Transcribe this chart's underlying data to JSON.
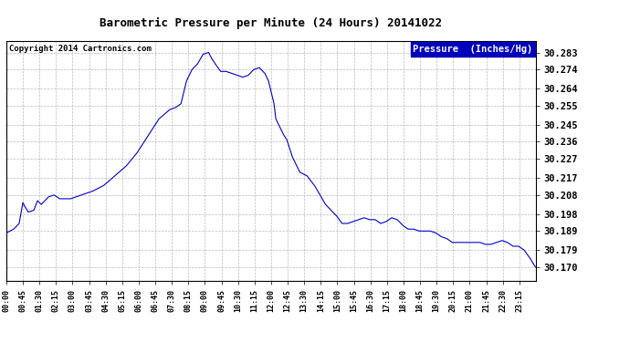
{
  "title": "Barometric Pressure per Minute (24 Hours) 20141022",
  "copyright": "Copyright 2014 Cartronics.com",
  "legend_label": "Pressure  (Inches/Hg)",
  "line_color": "#0000cc",
  "background_color": "#ffffff",
  "grid_color": "#aaaaaa",
  "copyright_color": "#000000",
  "yticks": [
    30.17,
    30.179,
    30.189,
    30.198,
    30.208,
    30.217,
    30.227,
    30.236,
    30.245,
    30.255,
    30.264,
    30.274,
    30.283
  ],
  "ylim": [
    30.163,
    30.289
  ],
  "xtick_labels": [
    "00:00",
    "00:45",
    "01:30",
    "02:15",
    "03:00",
    "03:45",
    "04:30",
    "05:15",
    "06:00",
    "06:45",
    "07:30",
    "08:15",
    "09:00",
    "09:45",
    "10:30",
    "11:15",
    "12:00",
    "12:45",
    "13:30",
    "14:15",
    "15:00",
    "15:45",
    "16:30",
    "17:15",
    "18:00",
    "18:45",
    "19:30",
    "20:15",
    "21:00",
    "21:45",
    "22:30",
    "23:15"
  ],
  "key_shape": [
    {
      "t": 0,
      "v": 30.188
    },
    {
      "t": 20,
      "v": 30.19
    },
    {
      "t": 35,
      "v": 30.193
    },
    {
      "t": 45,
      "v": 30.204
    },
    {
      "t": 50,
      "v": 30.202
    },
    {
      "t": 60,
      "v": 30.199
    },
    {
      "t": 75,
      "v": 30.2
    },
    {
      "t": 85,
      "v": 30.205
    },
    {
      "t": 95,
      "v": 30.203
    },
    {
      "t": 115,
      "v": 30.207
    },
    {
      "t": 130,
      "v": 30.208
    },
    {
      "t": 145,
      "v": 30.206
    },
    {
      "t": 175,
      "v": 30.206
    },
    {
      "t": 205,
      "v": 30.208
    },
    {
      "t": 235,
      "v": 30.21
    },
    {
      "t": 265,
      "v": 30.213
    },
    {
      "t": 295,
      "v": 30.218
    },
    {
      "t": 325,
      "v": 30.223
    },
    {
      "t": 355,
      "v": 30.23
    },
    {
      "t": 385,
      "v": 30.239
    },
    {
      "t": 415,
      "v": 30.248
    },
    {
      "t": 445,
      "v": 30.253
    },
    {
      "t": 460,
      "v": 30.254
    },
    {
      "t": 475,
      "v": 30.256
    },
    {
      "t": 490,
      "v": 30.268
    },
    {
      "t": 505,
      "v": 30.274
    },
    {
      "t": 520,
      "v": 30.277
    },
    {
      "t": 535,
      "v": 30.282
    },
    {
      "t": 550,
      "v": 30.283
    },
    {
      "t": 558,
      "v": 30.28
    },
    {
      "t": 568,
      "v": 30.277
    },
    {
      "t": 583,
      "v": 30.273
    },
    {
      "t": 598,
      "v": 30.273
    },
    {
      "t": 613,
      "v": 30.272
    },
    {
      "t": 628,
      "v": 30.271
    },
    {
      "t": 643,
      "v": 30.27
    },
    {
      "t": 658,
      "v": 30.271
    },
    {
      "t": 673,
      "v": 30.274
    },
    {
      "t": 688,
      "v": 30.275
    },
    {
      "t": 703,
      "v": 30.272
    },
    {
      "t": 713,
      "v": 30.268
    },
    {
      "t": 718,
      "v": 30.264
    },
    {
      "t": 728,
      "v": 30.256
    },
    {
      "t": 733,
      "v": 30.248
    },
    {
      "t": 743,
      "v": 30.244
    },
    {
      "t": 753,
      "v": 30.24
    },
    {
      "t": 763,
      "v": 30.237
    },
    {
      "t": 778,
      "v": 30.228
    },
    {
      "t": 798,
      "v": 30.22
    },
    {
      "t": 818,
      "v": 30.218
    },
    {
      "t": 838,
      "v": 30.213
    },
    {
      "t": 853,
      "v": 30.208
    },
    {
      "t": 868,
      "v": 30.203
    },
    {
      "t": 883,
      "v": 30.2
    },
    {
      "t": 898,
      "v": 30.197
    },
    {
      "t": 913,
      "v": 30.193
    },
    {
      "t": 928,
      "v": 30.193
    },
    {
      "t": 943,
      "v": 30.194
    },
    {
      "t": 958,
      "v": 30.195
    },
    {
      "t": 973,
      "v": 30.196
    },
    {
      "t": 988,
      "v": 30.195
    },
    {
      "t": 1003,
      "v": 30.195
    },
    {
      "t": 1018,
      "v": 30.193
    },
    {
      "t": 1033,
      "v": 30.194
    },
    {
      "t": 1048,
      "v": 30.196
    },
    {
      "t": 1063,
      "v": 30.195
    },
    {
      "t": 1078,
      "v": 30.192
    },
    {
      "t": 1093,
      "v": 30.19
    },
    {
      "t": 1108,
      "v": 30.19
    },
    {
      "t": 1123,
      "v": 30.189
    },
    {
      "t": 1138,
      "v": 30.189
    },
    {
      "t": 1153,
      "v": 30.189
    },
    {
      "t": 1168,
      "v": 30.188
    },
    {
      "t": 1183,
      "v": 30.186
    },
    {
      "t": 1198,
      "v": 30.185
    },
    {
      "t": 1213,
      "v": 30.183
    },
    {
      "t": 1228,
      "v": 30.183
    },
    {
      "t": 1243,
      "v": 30.183
    },
    {
      "t": 1258,
      "v": 30.183
    },
    {
      "t": 1273,
      "v": 30.183
    },
    {
      "t": 1288,
      "v": 30.183
    },
    {
      "t": 1303,
      "v": 30.182
    },
    {
      "t": 1318,
      "v": 30.182
    },
    {
      "t": 1333,
      "v": 30.183
    },
    {
      "t": 1348,
      "v": 30.184
    },
    {
      "t": 1363,
      "v": 30.183
    },
    {
      "t": 1378,
      "v": 30.181
    },
    {
      "t": 1393,
      "v": 30.181
    },
    {
      "t": 1408,
      "v": 30.179
    },
    {
      "t": 1423,
      "v": 30.175
    },
    {
      "t": 1439,
      "v": 30.17
    }
  ]
}
